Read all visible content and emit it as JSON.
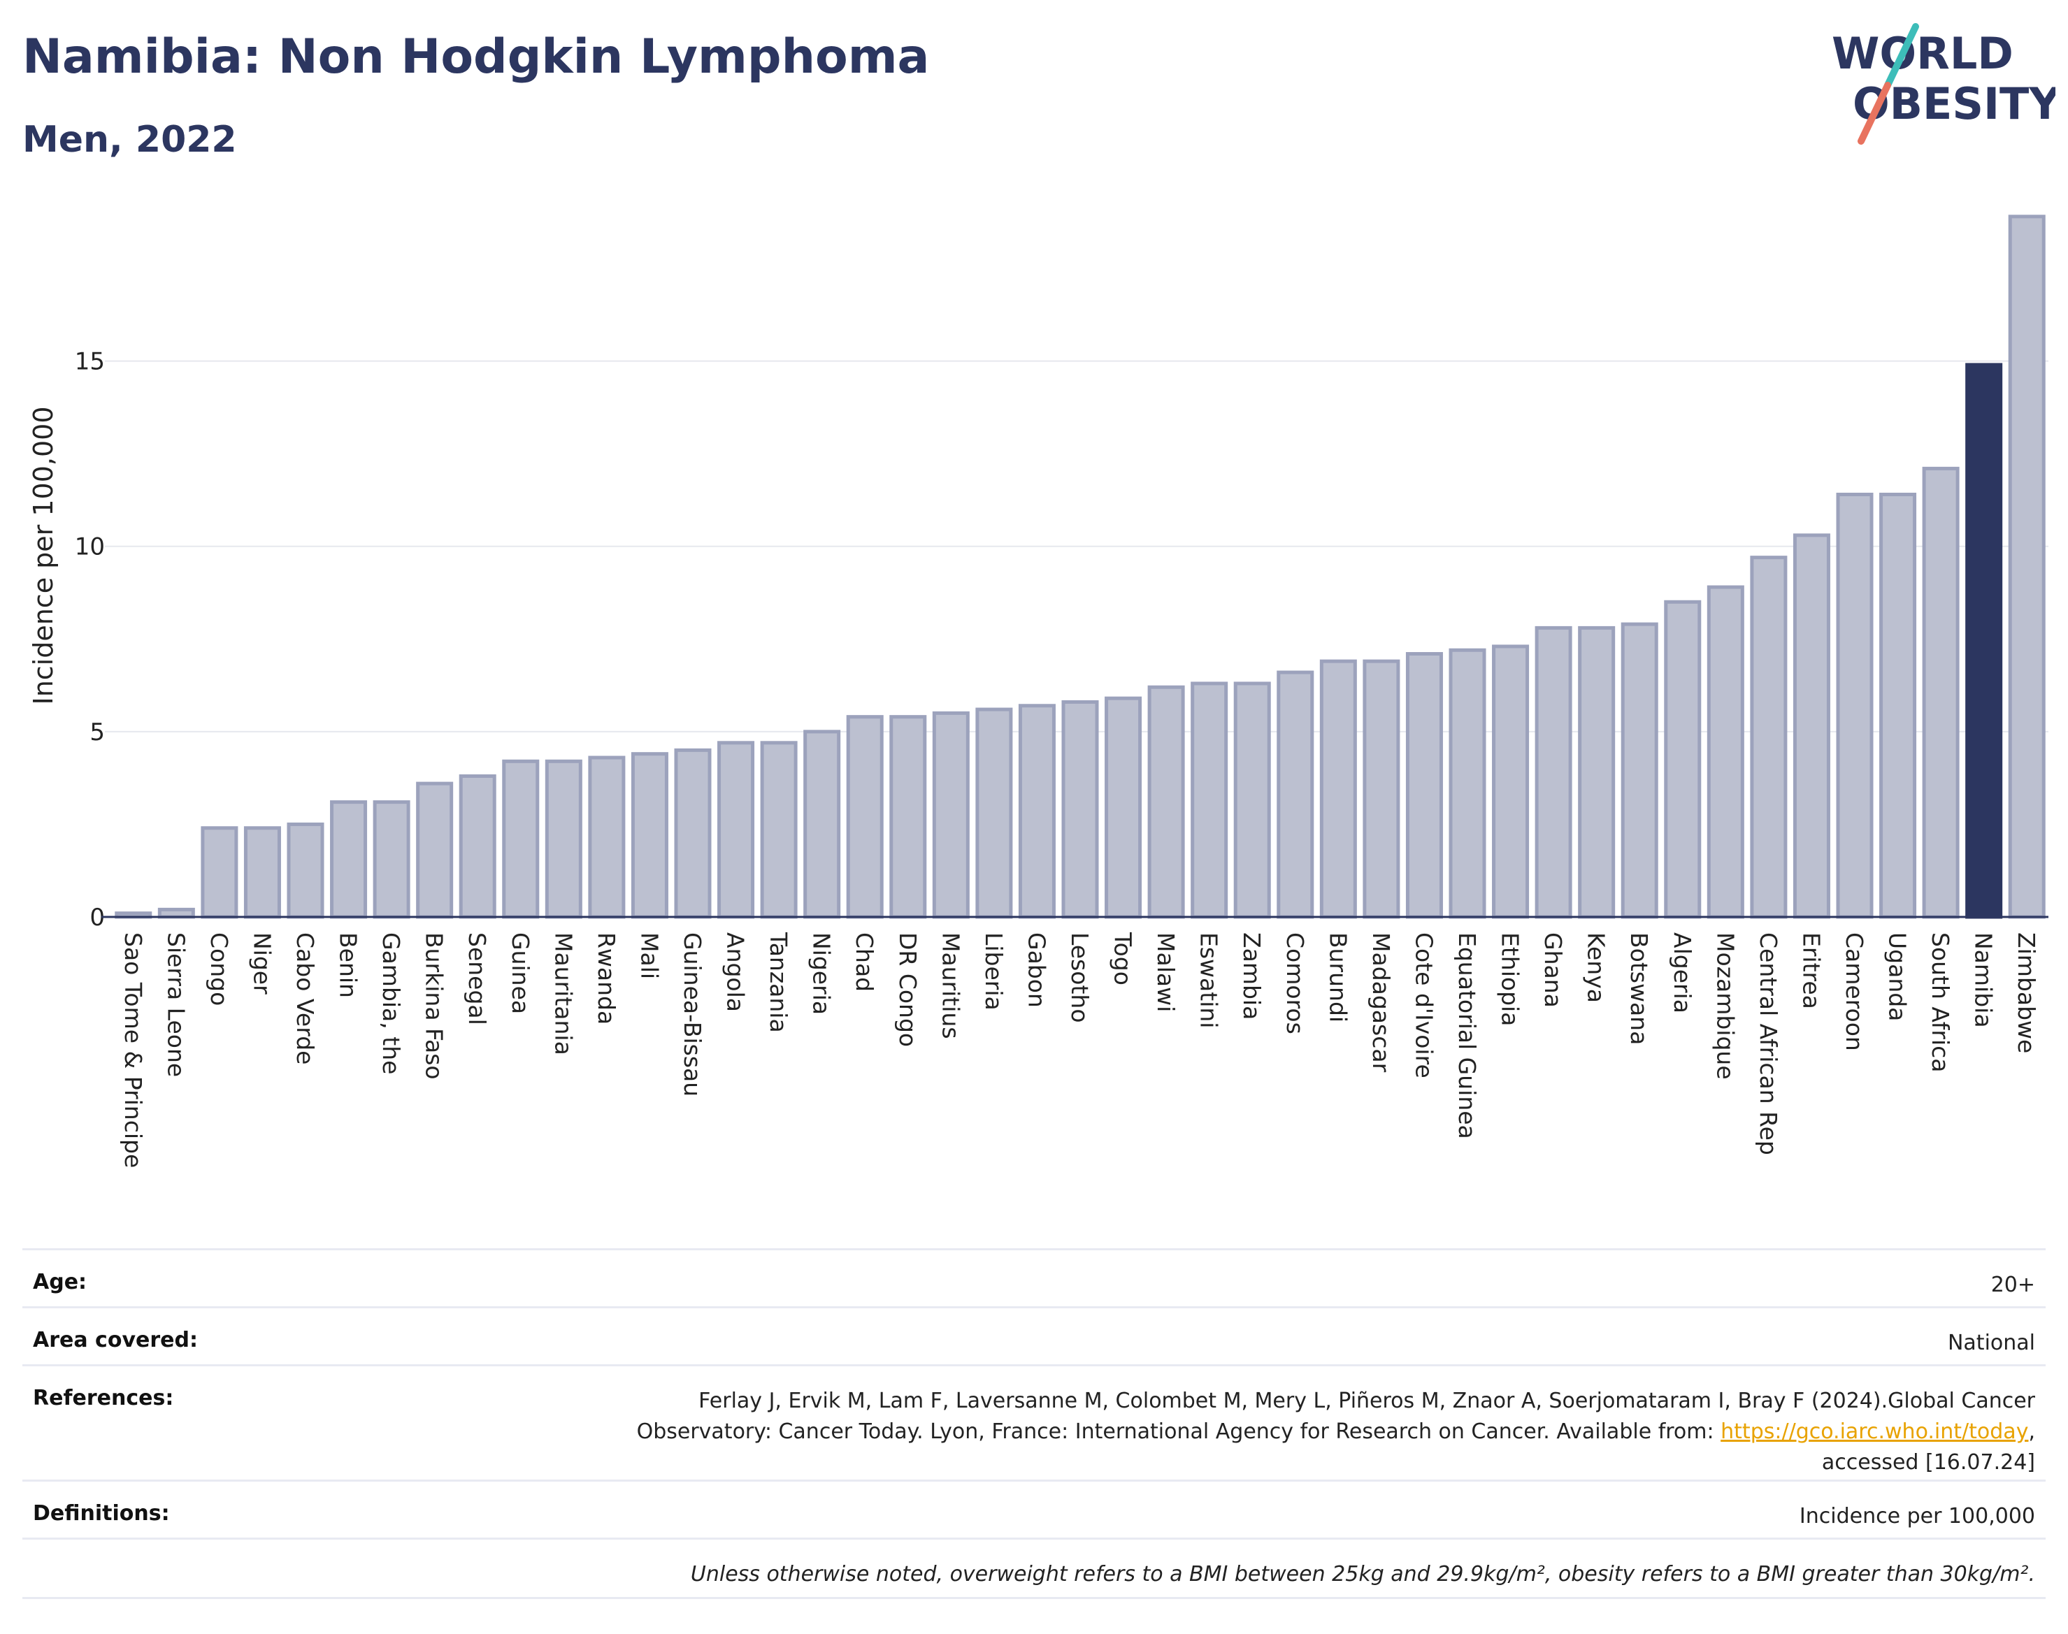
{
  "header": {
    "title": "Namibia: Non Hodgkin Lymphoma",
    "subtitle": "Men, 2022"
  },
  "logo": {
    "line1": "WORLD",
    "line2": "OBESITY",
    "colors": {
      "text": "#2c3660",
      "slash_teal": "#3dbdb9",
      "slash_coral": "#e8735f"
    }
  },
  "colors": {
    "bar": "#bcc0d0",
    "bar_stroke": "#9ca2bc",
    "highlight": "#2c3660",
    "grid": "#e6e8ee",
    "axis": "#2c3660"
  },
  "chart_data": {
    "type": "bar",
    "ylabel": "Incidence per 100,000",
    "ylim": [
      0,
      19.5
    ],
    "yticks": [
      0,
      5,
      10,
      15
    ],
    "grid": true,
    "highlight": "Namibia",
    "categories": [
      "Sao Tome & Principe",
      "Sierra Leone",
      "Congo",
      "Niger",
      "Cabo Verde",
      "Benin",
      "Gambia, the",
      "Burkina Faso",
      "Senegal",
      "Guinea",
      "Mauritania",
      "Rwanda",
      "Mali",
      "Guinea-Bissau",
      "Angola",
      "Tanzania",
      "Nigeria",
      "Chad",
      "DR Congo",
      "Mauritius",
      "Liberia",
      "Gabon",
      "Lesotho",
      "Togo",
      "Malawi",
      "Eswatini",
      "Zambia",
      "Comoros",
      "Burundi",
      "Madagascar",
      "Cote d'Ivoire",
      "Equatorial Guinea",
      "Ethiopia",
      "Ghana",
      "Kenya",
      "Botswana",
      "Algeria",
      "Mozambique",
      "Central African Rep",
      "Eritrea",
      "Cameroon",
      "Uganda",
      "South Africa",
      "Namibia",
      "Zimbabwe"
    ],
    "values": [
      0.1,
      0.2,
      2.4,
      2.4,
      2.5,
      3.1,
      3.1,
      3.6,
      3.8,
      4.2,
      4.2,
      4.3,
      4.4,
      4.5,
      4.7,
      4.7,
      5.0,
      5.4,
      5.4,
      5.5,
      5.6,
      5.7,
      5.8,
      5.9,
      6.2,
      6.3,
      6.3,
      6.6,
      6.9,
      6.9,
      7.1,
      7.2,
      7.3,
      7.8,
      7.8,
      7.9,
      8.5,
      8.9,
      9.7,
      10.3,
      11.4,
      11.4,
      12.1,
      14.9,
      18.9
    ]
  },
  "info": {
    "age_label": "Age:",
    "age_value": "20+",
    "area_label": "Area covered:",
    "area_value": "National",
    "ref_label": "References:",
    "ref_line1": "Ferlay J, Ervik M, Lam F, Laversanne M, Colombet M, Mery L, Piñeros M, Znaor A, Soerjomataram I, Bray F (2024).Global Cancer",
    "ref_line2_pre": "Observatory: Cancer Today. Lyon, France: International Agency for Research on Cancer. Available from: ",
    "ref_link": "https://gco.iarc.who.int/today",
    "ref_line2_post": ",",
    "ref_line3": "accessed [16.07.24]",
    "def_label": "Definitions:",
    "def_value": "Incidence per 100,000",
    "note": "Unless otherwise noted, overweight refers to a BMI between 25kg and 29.9kg/m², obesity refers to a BMI greater than 30kg/m²."
  }
}
